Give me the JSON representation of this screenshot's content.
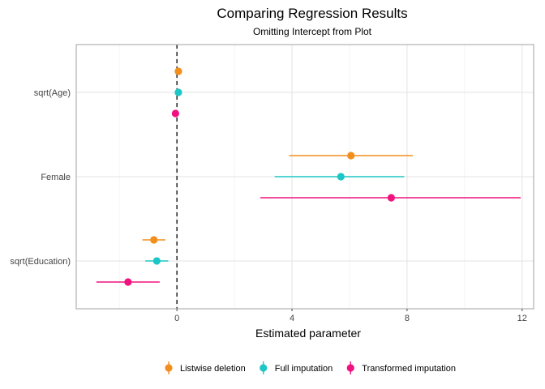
{
  "chart_data": {
    "type": "scatter",
    "subtype": "coefficient-plot",
    "title": "Comparing Regression Results",
    "subtitle": "Omitting Intercept from Plot",
    "xlabel": "Estimated parameter",
    "ylabel": "",
    "xlim": [
      -3.5,
      12.4
    ],
    "xticks": [
      0,
      4,
      8,
      12
    ],
    "reference_line": {
      "x": 0,
      "style": "dashed"
    },
    "grid": true,
    "legend_position": "bottom",
    "categories": [
      "sqrt(Age)",
      "Female",
      "sqrt(Education)"
    ],
    "series": [
      {
        "name": "Listwise deletion",
        "color": "#F28E1C",
        "points": [
          {
            "category": "sqrt(Age)",
            "estimate": 0.05,
            "low": 0.05,
            "high": 0.05
          },
          {
            "category": "Female",
            "estimate": 6.05,
            "low": 3.9,
            "high": 8.2
          },
          {
            "category": "sqrt(Education)",
            "estimate": -0.8,
            "low": -1.2,
            "high": -0.4
          }
        ]
      },
      {
        "name": "Full imputation",
        "color": "#1CC6C6",
        "points": [
          {
            "category": "sqrt(Age)",
            "estimate": 0.05,
            "low": 0.05,
            "high": 0.05
          },
          {
            "category": "Female",
            "estimate": 5.7,
            "low": 3.4,
            "high": 7.9
          },
          {
            "category": "sqrt(Education)",
            "estimate": -0.7,
            "low": -1.1,
            "high": -0.3
          }
        ]
      },
      {
        "name": "Transformed imputation",
        "color": "#F0127E",
        "points": [
          {
            "category": "sqrt(Age)",
            "estimate": -0.05,
            "low": -0.05,
            "high": -0.05
          },
          {
            "category": "Female",
            "estimate": 7.45,
            "low": 2.9,
            "high": 11.95
          },
          {
            "category": "sqrt(Education)",
            "estimate": -1.7,
            "low": -2.8,
            "high": -0.6
          }
        ]
      }
    ]
  }
}
